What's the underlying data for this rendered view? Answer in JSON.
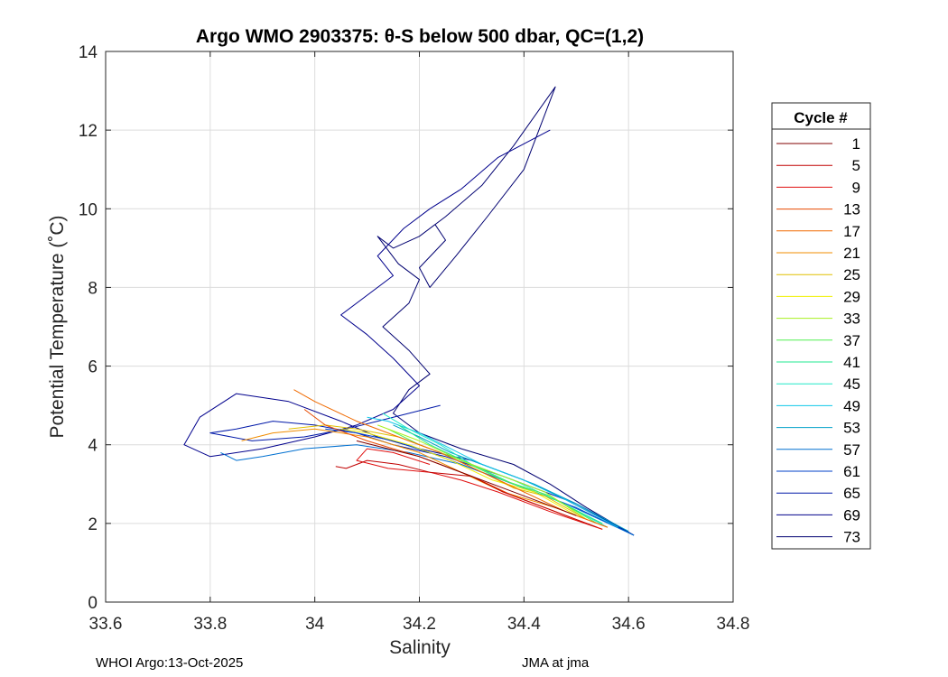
{
  "chart_data": {
    "type": "line",
    "title": "Argo WMO 2903375: θ-S below 500 dbar,  QC=(1,2)",
    "xlabel": "Salinity",
    "ylabel": "Potential Temperature (˚C)",
    "xlim": [
      33.6,
      34.8
    ],
    "ylim": [
      0,
      14
    ],
    "xticks": [
      "33.6",
      "33.8",
      "34",
      "34.2",
      "34.4",
      "34.6",
      "34.8"
    ],
    "yticks": [
      "0",
      "2",
      "4",
      "6",
      "8",
      "10",
      "12",
      "14"
    ],
    "grid": true,
    "legend": {
      "title": "Cycle #",
      "placement": "right",
      "entries": [
        {
          "label": "1",
          "color": "#800000"
        },
        {
          "label": "5",
          "color": "#c00000"
        },
        {
          "label": "9",
          "color": "#e01010"
        },
        {
          "label": "13",
          "color": "#e84a00"
        },
        {
          "label": "17",
          "color": "#f06a00"
        },
        {
          "label": "21",
          "color": "#f08c00"
        },
        {
          "label": "25",
          "color": "#e0c000"
        },
        {
          "label": "29",
          "color": "#f0f000"
        },
        {
          "label": "33",
          "color": "#a8f020"
        },
        {
          "label": "37",
          "color": "#50f050"
        },
        {
          "label": "41",
          "color": "#20e890"
        },
        {
          "label": "45",
          "color": "#20e8c8"
        },
        {
          "label": "49",
          "color": "#10c8e8"
        },
        {
          "label": "53",
          "color": "#00a0c8"
        },
        {
          "label": "57",
          "color": "#0070d0"
        },
        {
          "label": "61",
          "color": "#0040c8"
        },
        {
          "label": "65",
          "color": "#0018a8"
        },
        {
          "label": "69",
          "color": "#00008c"
        },
        {
          "label": "73",
          "color": "#000070"
        }
      ]
    },
    "series": [
      {
        "name": "73",
        "color": "#000070",
        "x": [
          34.61,
          34.52,
          34.45,
          34.38,
          34.28,
          34.2,
          34.15,
          34.18,
          34.22,
          34.18,
          34.13,
          34.18,
          34.2,
          34.16,
          34.12,
          34.15,
          34.2,
          34.23,
          34.25,
          34.2,
          34.22,
          34.27,
          34.33,
          34.4,
          34.46,
          34.38,
          34.32,
          34.25,
          34.2
        ],
        "y": [
          1.7,
          2.4,
          3.0,
          3.5,
          3.9,
          4.3,
          4.8,
          5.4,
          5.8,
          6.4,
          7.0,
          7.6,
          8.2,
          8.6,
          9.3,
          9.0,
          9.3,
          9.6,
          9.2,
          8.5,
          8.0,
          8.8,
          9.8,
          11.0,
          13.1,
          11.6,
          10.6,
          9.8,
          9.3
        ]
      },
      {
        "name": "69",
        "color": "#00008c",
        "x": [
          34.61,
          34.5,
          34.4,
          34.3,
          34.2,
          34.12,
          34.05,
          33.95,
          33.85,
          33.78,
          33.75,
          33.8,
          33.9,
          34.0,
          34.08,
          34.15,
          34.2,
          34.15,
          34.1,
          34.05,
          34.1,
          34.15,
          34.12,
          34.17,
          34.22,
          34.28,
          34.35,
          34.45
        ],
        "y": [
          1.7,
          2.5,
          3.1,
          3.6,
          3.9,
          4.2,
          4.6,
          5.1,
          5.3,
          4.7,
          4.0,
          3.7,
          3.9,
          4.2,
          4.5,
          4.9,
          5.5,
          6.2,
          6.8,
          7.3,
          7.8,
          8.3,
          8.8,
          9.5,
          10.0,
          10.5,
          11.3,
          12.0
        ]
      },
      {
        "name": "65",
        "color": "#0018a8",
        "x": [
          34.61,
          34.48,
          34.36,
          34.25,
          34.15,
          34.08,
          34.0,
          33.92,
          33.85,
          33.8,
          33.88,
          33.98,
          34.06,
          34.12,
          34.18,
          34.24
        ],
        "y": [
          1.7,
          2.6,
          3.2,
          3.7,
          4.0,
          4.3,
          4.5,
          4.6,
          4.4,
          4.3,
          4.1,
          4.2,
          4.4,
          4.6,
          4.8,
          5.0
        ]
      },
      {
        "name": "61",
        "color": "#0040c8",
        "x": [
          34.61,
          34.5,
          34.4,
          34.3,
          34.22,
          34.15,
          34.08,
          34.02
        ],
        "y": [
          1.7,
          2.4,
          2.9,
          3.4,
          3.8,
          4.1,
          4.3,
          4.4
        ]
      },
      {
        "name": "57",
        "color": "#0070d0",
        "x": [
          34.61,
          34.48,
          34.38,
          34.28,
          34.18,
          34.08,
          33.98,
          33.9,
          33.85,
          33.82
        ],
        "y": [
          1.7,
          2.5,
          3.0,
          3.5,
          3.8,
          4.0,
          3.9,
          3.7,
          3.6,
          3.8
        ]
      },
      {
        "name": "53",
        "color": "#00a0c8",
        "x": [
          34.6,
          34.5,
          34.42,
          34.34,
          34.26,
          34.2,
          34.15
        ],
        "y": [
          1.8,
          2.5,
          3.0,
          3.4,
          3.8,
          4.2,
          4.5
        ]
      },
      {
        "name": "49",
        "color": "#10c8e8",
        "x": [
          34.58,
          34.48,
          34.4,
          34.32,
          34.26,
          34.2,
          34.14,
          34.1
        ],
        "y": [
          1.9,
          2.6,
          3.1,
          3.5,
          3.9,
          4.3,
          4.6,
          4.7
        ]
      },
      {
        "name": "45",
        "color": "#20e8c8",
        "x": [
          34.56,
          34.46,
          34.38,
          34.3,
          34.24,
          34.18,
          34.13
        ],
        "y": [
          1.9,
          2.6,
          3.1,
          3.5,
          4.0,
          4.4,
          4.8
        ]
      },
      {
        "name": "41",
        "color": "#20e890",
        "x": [
          34.55,
          34.46,
          34.38,
          34.3,
          34.22,
          34.16
        ],
        "y": [
          2.0,
          2.6,
          3.0,
          3.5,
          4.0,
          4.5
        ]
      },
      {
        "name": "37",
        "color": "#50f050",
        "x": [
          34.54,
          34.45,
          34.36,
          34.28,
          34.2,
          34.14
        ],
        "y": [
          2.0,
          2.7,
          3.1,
          3.6,
          4.0,
          4.4
        ]
      },
      {
        "name": "33",
        "color": "#a8f020",
        "x": [
          34.52,
          34.44,
          34.36,
          34.28,
          34.2,
          34.12
        ],
        "y": [
          2.1,
          2.8,
          3.2,
          3.6,
          4.1,
          4.5
        ]
      },
      {
        "name": "29",
        "color": "#f0f000",
        "x": [
          34.5,
          34.42,
          34.34,
          34.26,
          34.18,
          34.1,
          34.05
        ],
        "y": [
          2.2,
          2.8,
          3.1,
          3.6,
          4.0,
          4.3,
          4.4
        ]
      },
      {
        "name": "25",
        "color": "#e0c000",
        "x": [
          34.52,
          34.44,
          34.38,
          34.32,
          34.24,
          34.16,
          34.08,
          34.02,
          33.95
        ],
        "y": [
          2.1,
          2.7,
          2.9,
          3.3,
          3.8,
          4.2,
          4.4,
          4.5,
          4.4
        ]
      },
      {
        "name": "21",
        "color": "#f08c00",
        "x": [
          34.56,
          34.46,
          34.36,
          34.28,
          34.2,
          34.1,
          34.0,
          33.92,
          33.86
        ],
        "y": [
          1.9,
          2.4,
          2.8,
          3.3,
          3.8,
          4.2,
          4.4,
          4.3,
          4.1
        ]
      },
      {
        "name": "17",
        "color": "#f06a00",
        "x": [
          34.56,
          34.48,
          34.4,
          34.32,
          34.24,
          34.16,
          34.08,
          34.0,
          33.96
        ],
        "y": [
          1.9,
          2.3,
          2.8,
          3.3,
          3.8,
          4.2,
          4.6,
          5.1,
          5.4
        ]
      },
      {
        "name": "13",
        "color": "#e84a00",
        "x": [
          34.55,
          34.46,
          34.38,
          34.3,
          34.2,
          34.1,
          34.02,
          33.98
        ],
        "y": [
          1.85,
          2.3,
          2.7,
          3.2,
          3.7,
          4.1,
          4.5,
          4.9
        ]
      },
      {
        "name": "9",
        "color": "#e01010",
        "x": [
          34.55,
          34.45,
          34.35,
          34.28,
          34.22,
          34.14,
          34.08,
          34.1,
          34.15,
          34.22
        ],
        "y": [
          1.85,
          2.3,
          2.8,
          3.1,
          3.3,
          3.4,
          3.6,
          3.9,
          3.8,
          3.5
        ]
      },
      {
        "name": "5",
        "color": "#c00000",
        "x": [
          34.54,
          34.44,
          34.36,
          34.3,
          34.22,
          34.16,
          34.1,
          34.06,
          34.04
        ],
        "y": [
          1.9,
          2.4,
          2.8,
          3.2,
          3.3,
          3.5,
          3.6,
          3.4,
          3.45
        ]
      },
      {
        "name": "1",
        "color": "#800000",
        "x": [
          34.5,
          34.42,
          34.34,
          34.26,
          34.2,
          34.14,
          34.08
        ],
        "y": [
          2.2,
          2.6,
          3.0,
          3.4,
          3.7,
          3.9,
          4.1
        ]
      }
    ]
  },
  "footer": {
    "left": "WHOI Argo:13-Oct-2025",
    "right": "JMA at jma"
  }
}
